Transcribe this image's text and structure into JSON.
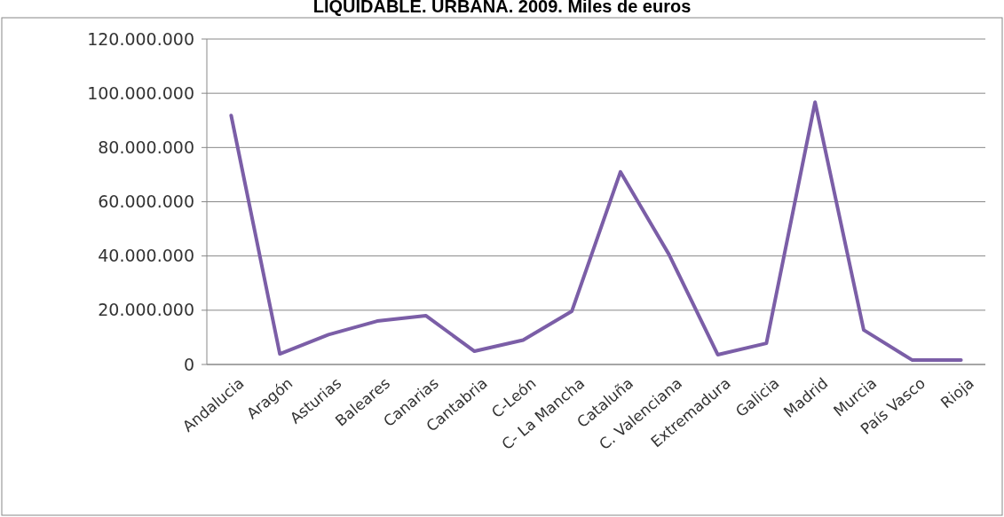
{
  "chart_data": {
    "type": "line",
    "title": "LIQUIDABLE. URBANA. 2009. Miles de euros",
    "categories": [
      "Andalucia",
      "Aragón",
      "Asturias",
      "Baleares",
      "Canarias",
      "Cantabria",
      "C-León",
      "C- La Mancha",
      "Cataluña",
      "C. Valenciana",
      "Extremadura",
      "Galicia",
      "Madrid",
      "Murcia",
      "País Vasco",
      "Rioja"
    ],
    "series": [
      {
        "color": "#7b5ea7",
        "values": [
          91800000,
          3900000,
          11000000,
          16000000,
          18000000,
          4900000,
          9000000,
          19600000,
          71000000,
          40500000,
          3600000,
          7800000,
          96700000,
          12700000,
          1600000,
          1600000
        ]
      }
    ],
    "ylim": [
      0,
      120000000
    ],
    "yticks": [
      {
        "value": 0,
        "label": "0"
      },
      {
        "value": 20000000,
        "label": "20.000.000"
      },
      {
        "value": 40000000,
        "label": "40.000.000"
      },
      {
        "value": 60000000,
        "label": "60.000.000"
      },
      {
        "value": 80000000,
        "label": "80.000.000"
      },
      {
        "value": 100000000,
        "label": "100.000.000"
      },
      {
        "value": 120000000,
        "label": "120.000.000"
      }
    ],
    "grid": "y",
    "marker": "none",
    "line_style": "solid"
  }
}
